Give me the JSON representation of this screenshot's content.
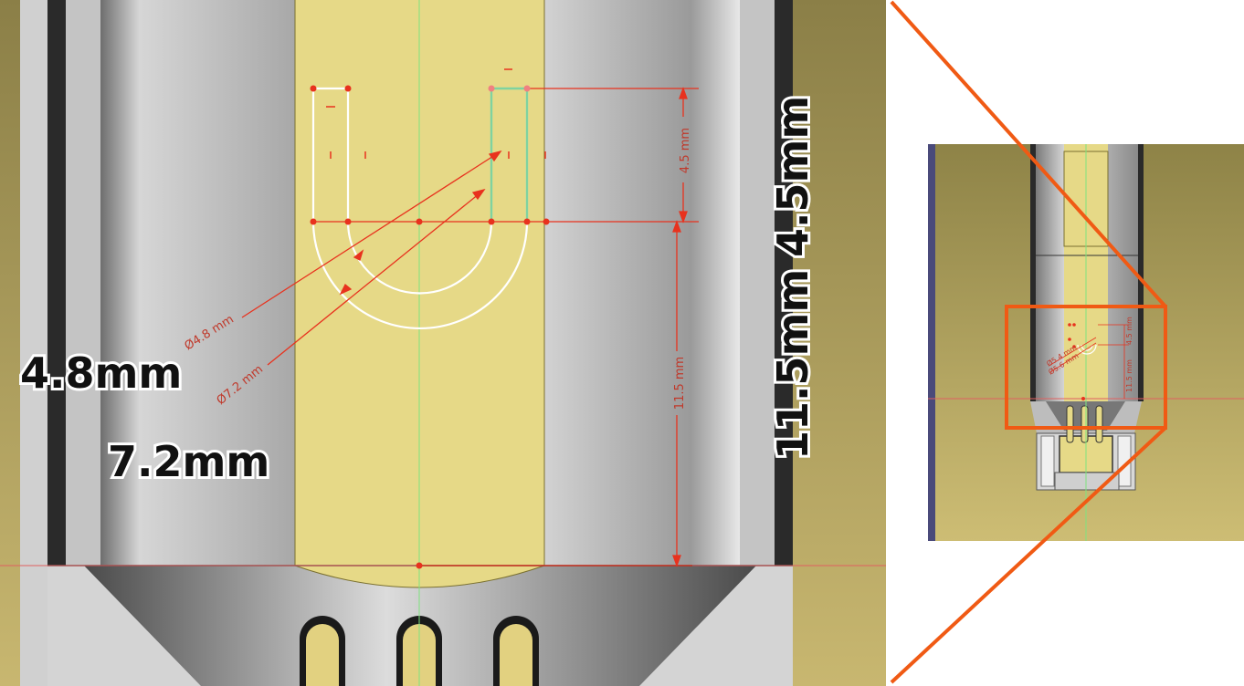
{
  "annotations": {
    "d_inner_label": "4.8mm",
    "d_outer_label": "7.2mm",
    "h_small_label": "4.5mm",
    "h_large_label": "11.5mm"
  },
  "dimensions": {
    "diameter_inner": "Ø4.8 mm",
    "diameter_outer": "Ø7.2 mm",
    "height_small": "4.5 mm",
    "height_large": "11.5 mm"
  },
  "overview": {
    "diameter_a": "Ø5.4 mm",
    "diameter_b": "Ø5.6 mm",
    "height_small": "4.5 mm",
    "height_large": "11.5 mm"
  },
  "colors": {
    "background_olive": "#8b7f47",
    "sketch_face": "#e6d987",
    "constraint_red": "#e8321e",
    "callout_orange": "#f05a14",
    "axis_green": "#7fe37f"
  }
}
